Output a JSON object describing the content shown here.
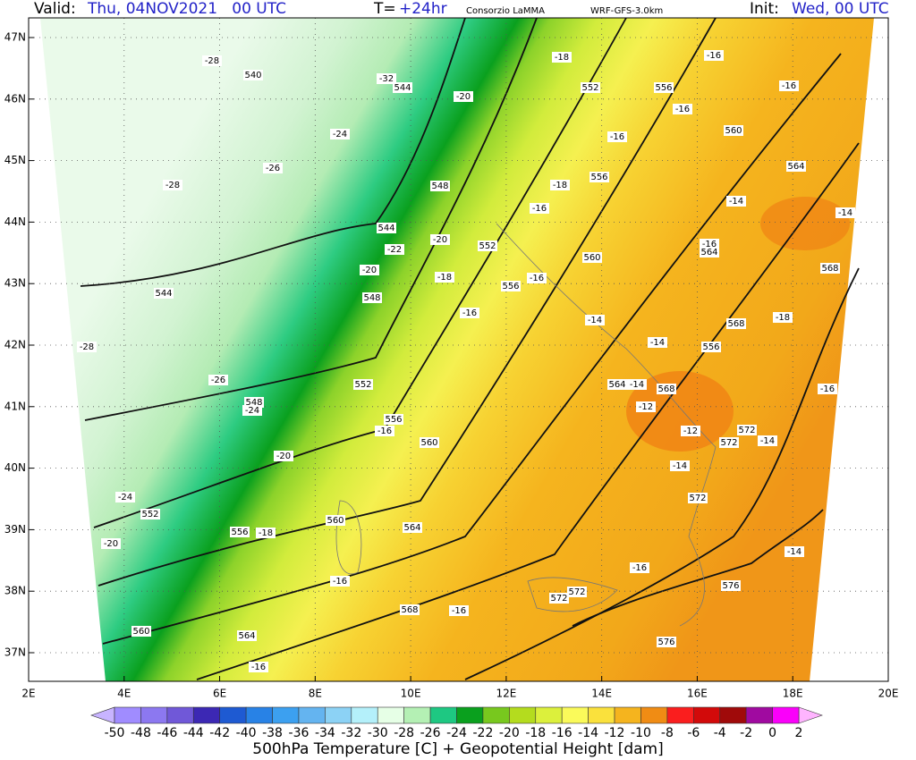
{
  "header": {
    "valid_label": "Valid:",
    "valid_value": "Thu, 04NOV2021   00 UTC",
    "t_label": "T=",
    "t_value": "+24hr",
    "source": "Consorzio LaMMA",
    "model": "WRF-GFS-3.0km",
    "init_label": "Init:",
    "init_value": "Wed, 00 UTC"
  },
  "map": {
    "lat_labels": [
      "47N",
      "46N",
      "45N",
      "44N",
      "43N",
      "42N",
      "41N",
      "40N",
      "39N",
      "38N",
      "37N"
    ],
    "lon_labels": [
      "2E",
      "4E",
      "6E",
      "8E",
      "10E",
      "12E",
      "14E",
      "16E",
      "18E",
      "20E"
    ],
    "contour_labels": [
      -28,
      540,
      -32,
      544,
      -20,
      -18,
      -16,
      552,
      556,
      -16,
      -16,
      -24,
      560,
      -16,
      -26,
      -28,
      548,
      -18,
      556,
      564,
      -16,
      -14,
      -14,
      544,
      -22,
      -20,
      552,
      -16,
      564,
      560,
      568,
      -20,
      -18,
      556,
      -16,
      544,
      548,
      -16,
      -14,
      568,
      -18,
      -28,
      -14,
      556,
      -26,
      552,
      564,
      -14,
      568,
      -16,
      548,
      -24,
      -12,
      556,
      -16,
      572,
      -12,
      560,
      572,
      -14,
      -20,
      -14,
      572,
      -24,
      552,
      -20,
      556,
      -18,
      560,
      564,
      -14,
      -16,
      -16,
      576,
      572,
      572,
      -16,
      568,
      560,
      564,
      576,
      -16
    ]
  },
  "colorbar": {
    "labels": [
      -50,
      -48,
      -46,
      -44,
      -42,
      -40,
      -38,
      -36,
      -34,
      -32,
      -30,
      -28,
      -26,
      -24,
      -22,
      -20,
      -18,
      -16,
      -14,
      -12,
      -10,
      -8,
      -6,
      -4,
      -2,
      0,
      2
    ],
    "colors": [
      "#a08cff",
      "#8c78f0",
      "#7058d8",
      "#3c28b4",
      "#1e5ad2",
      "#2882e6",
      "#3ca0f0",
      "#64b4f0",
      "#8cd2f5",
      "#b4f0fa",
      "#e6ffe6",
      "#b4f0b4",
      "#1ec882",
      "#0aa01e",
      "#78c81e",
      "#b4dc1e",
      "#dcf03c",
      "#fafa5a",
      "#fae13c",
      "#f5b41e",
      "#f08c14",
      "#fa1e1e",
      "#d20a0a",
      "#a00a0a",
      "#a00aa0",
      "#fa00fa"
    ],
    "title": "500hPa Temperature [C] + Geopotential Height [dam]"
  }
}
